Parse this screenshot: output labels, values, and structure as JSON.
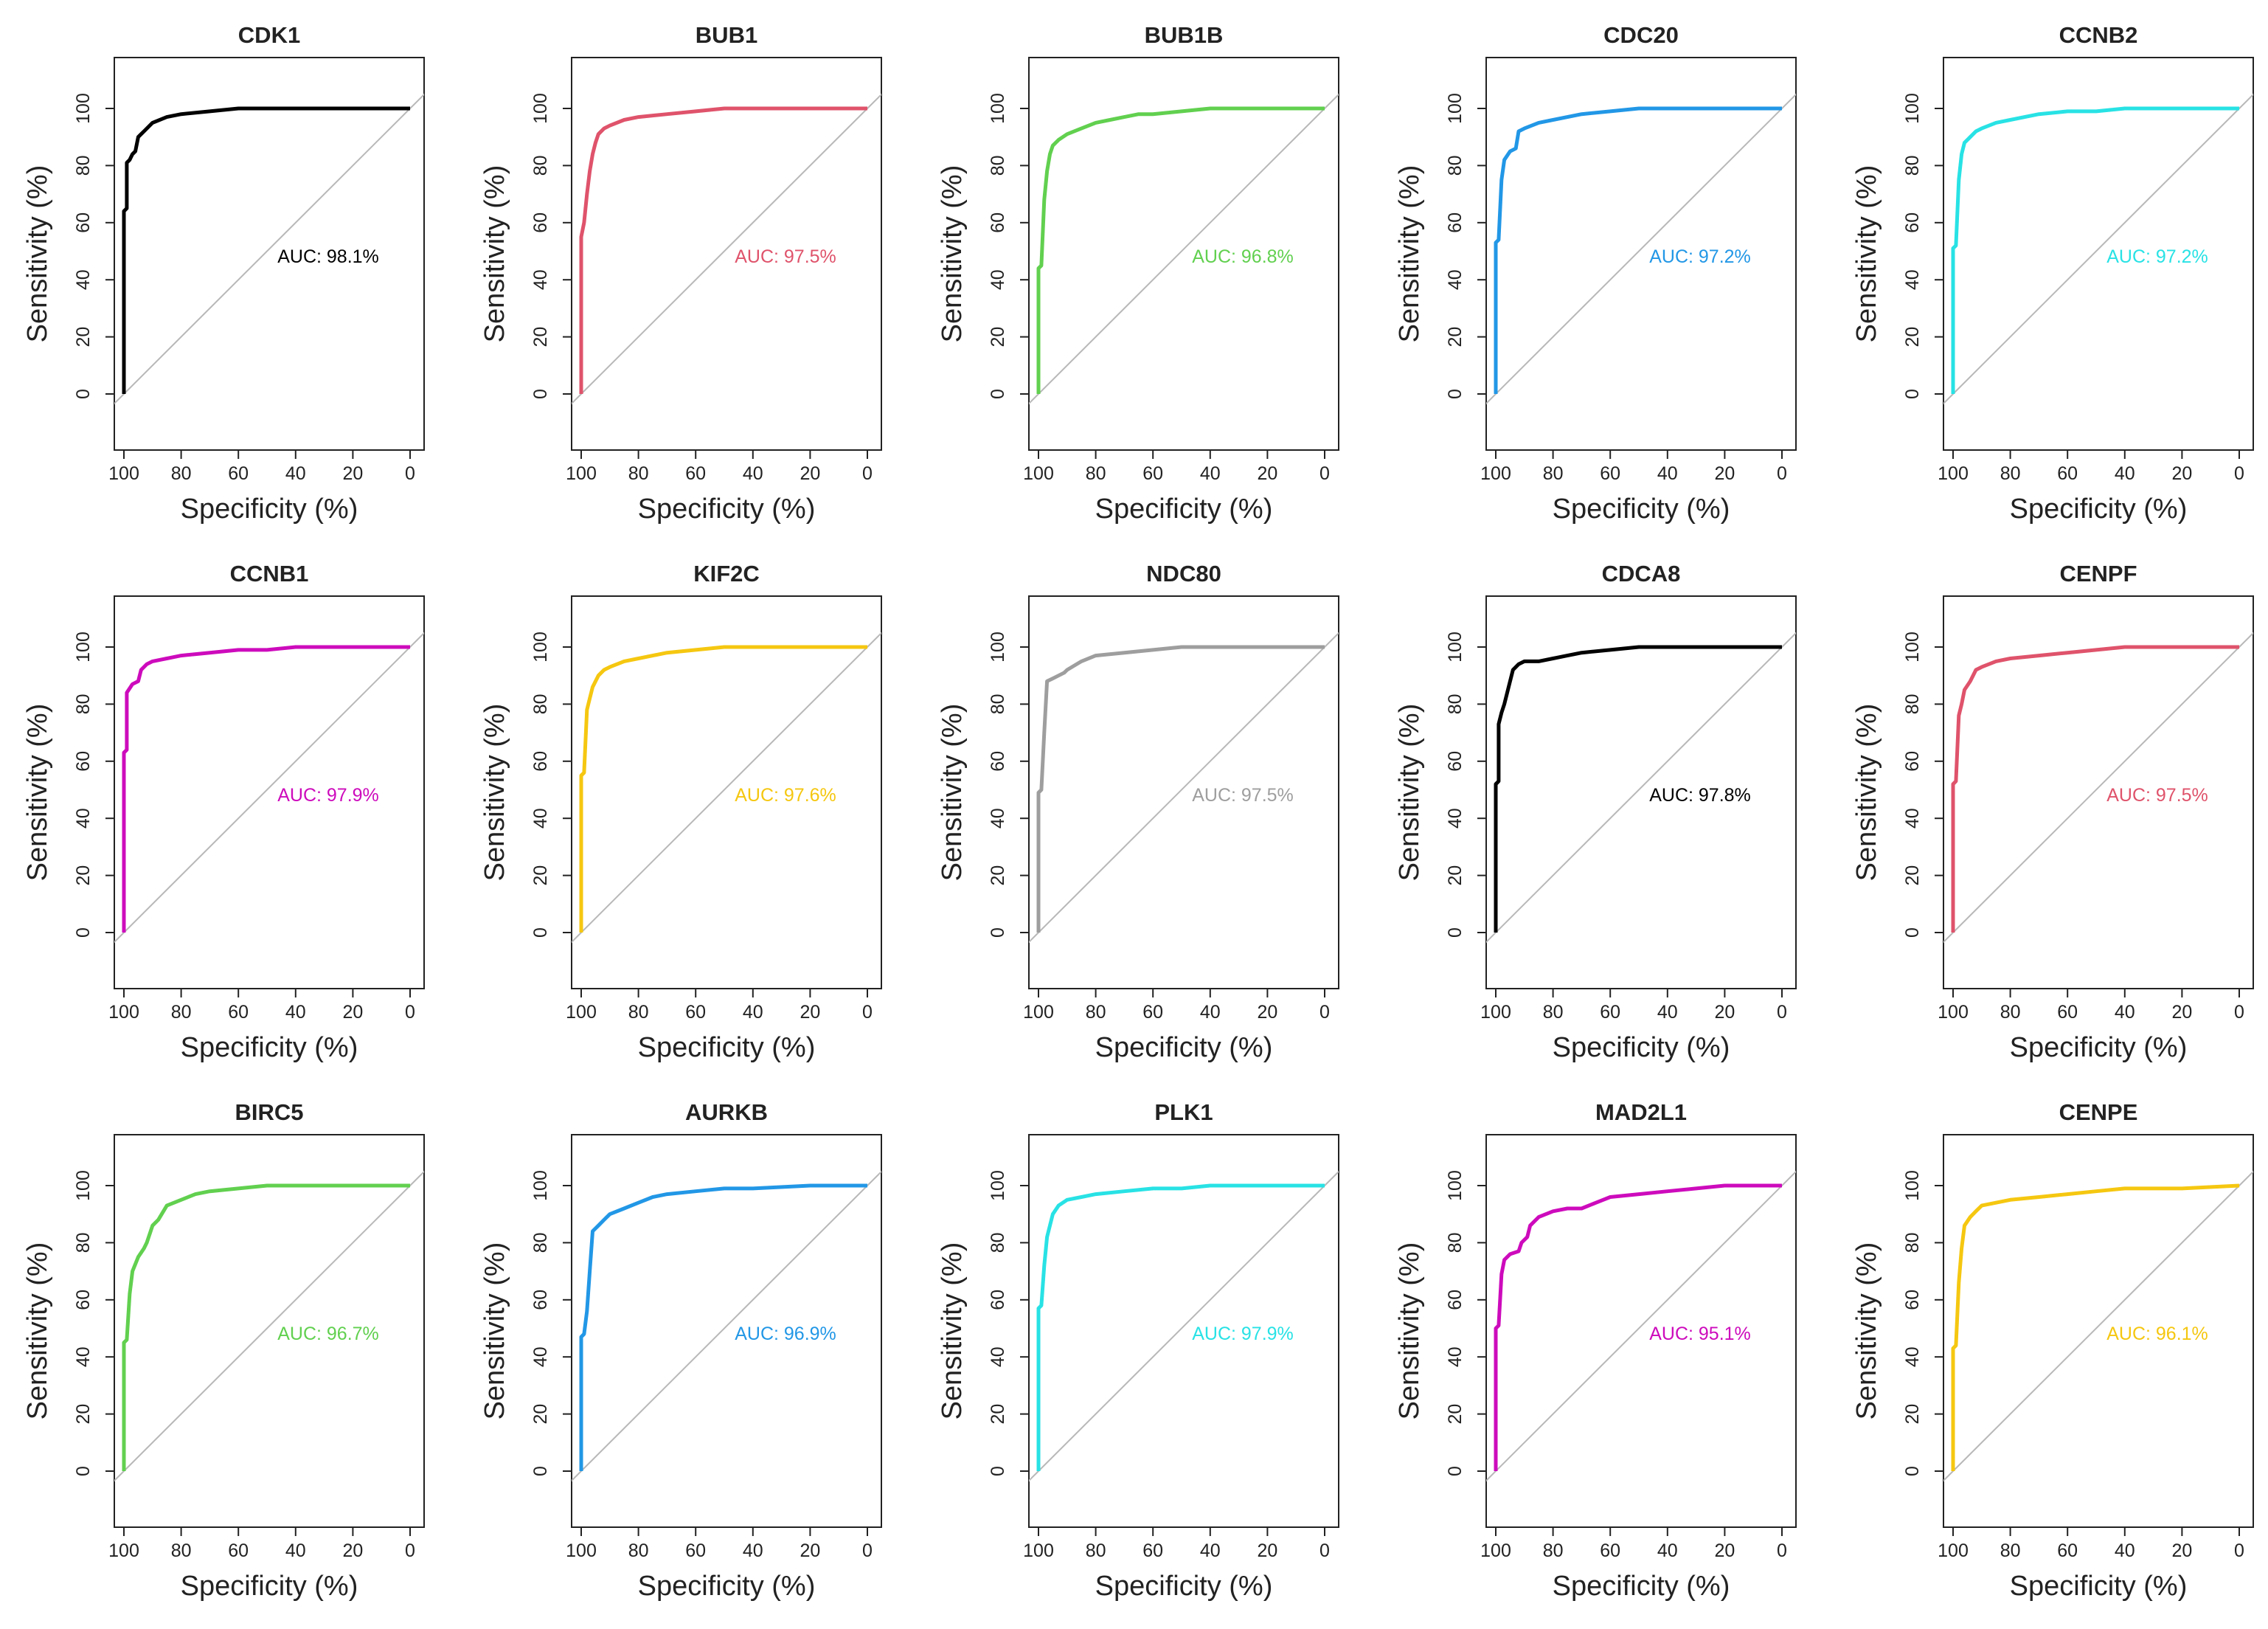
{
  "chart_data": [
    {
      "type": "line",
      "title": "CDK1",
      "xlabel": "Specificity (%)",
      "ylabel": "Sensitivity (%)",
      "xlim": [
        100,
        0
      ],
      "ylim": [
        0,
        100
      ],
      "xticks": [
        "100",
        "80",
        "60",
        "40",
        "20",
        "0"
      ],
      "yticks": [
        "0",
        "20",
        "40",
        "60",
        "80",
        "100"
      ],
      "color": "#000000",
      "auc_text": "AUC: 98.1%",
      "series": [
        {
          "x": [
            100,
            100,
            99,
            99,
            98,
            97,
            96,
            95,
            94,
            93,
            90,
            85,
            80,
            70,
            60,
            50,
            40,
            20,
            0
          ],
          "y": [
            0,
            64,
            65,
            81,
            82,
            84,
            85,
            90,
            91,
            92,
            95,
            97,
            98,
            99,
            100,
            100,
            100,
            100,
            100
          ]
        }
      ]
    },
    {
      "type": "line",
      "title": "BUB1",
      "xlabel": "Specificity (%)",
      "ylabel": "Sensitivity (%)",
      "xlim": [
        100,
        0
      ],
      "ylim": [
        0,
        100
      ],
      "xticks": [
        "100",
        "80",
        "60",
        "40",
        "20",
        "0"
      ],
      "yticks": [
        "0",
        "20",
        "40",
        "60",
        "80",
        "100"
      ],
      "color": "#DF536B",
      "auc_text": "AUC: 97.5%",
      "series": [
        {
          "x": [
            100,
            100,
            99,
            98,
            97,
            96,
            95,
            94,
            92,
            90,
            85,
            80,
            70,
            60,
            50,
            40,
            20,
            0
          ],
          "y": [
            0,
            55,
            60,
            70,
            78,
            84,
            88,
            91,
            93,
            94,
            96,
            97,
            98,
            99,
            100,
            100,
            100,
            100
          ]
        }
      ]
    },
    {
      "type": "line",
      "title": "BUB1B",
      "xlabel": "Specificity (%)",
      "ylabel": "Sensitivity (%)",
      "xlim": [
        100,
        0
      ],
      "ylim": [
        0,
        100
      ],
      "xticks": [
        "100",
        "80",
        "60",
        "40",
        "20",
        "0"
      ],
      "yticks": [
        "0",
        "20",
        "40",
        "60",
        "80",
        "100"
      ],
      "color": "#61D04F",
      "auc_text": "AUC: 96.8%",
      "series": [
        {
          "x": [
            100,
            100,
            99,
            98,
            97,
            96,
            95,
            93,
            90,
            85,
            80,
            75,
            70,
            65,
            60,
            50,
            40,
            20,
            0
          ],
          "y": [
            0,
            44,
            45,
            68,
            78,
            84,
            87,
            89,
            91,
            93,
            95,
            96,
            97,
            98,
            98,
            99,
            100,
            100,
            100
          ]
        }
      ]
    },
    {
      "type": "line",
      "title": "CDC20",
      "xlabel": "Specificity (%)",
      "ylabel": "Sensitivity (%)",
      "xlim": [
        100,
        0
      ],
      "ylim": [
        0,
        100
      ],
      "xticks": [
        "100",
        "80",
        "60",
        "40",
        "20",
        "0"
      ],
      "yticks": [
        "0",
        "20",
        "40",
        "60",
        "80",
        "100"
      ],
      "color": "#2297E6",
      "auc_text": "AUC: 97.2%",
      "series": [
        {
          "x": [
            100,
            100,
            99,
            98,
            97,
            95,
            93,
            92,
            90,
            85,
            80,
            70,
            60,
            50,
            40,
            20,
            0
          ],
          "y": [
            0,
            53,
            54,
            75,
            82,
            85,
            86,
            92,
            93,
            95,
            96,
            98,
            99,
            100,
            100,
            100,
            100
          ]
        }
      ]
    },
    {
      "type": "line",
      "title": "CCNB2",
      "xlabel": "Specificity (%)",
      "ylabel": "Sensitivity (%)",
      "xlim": [
        100,
        0
      ],
      "ylim": [
        0,
        100
      ],
      "xticks": [
        "100",
        "80",
        "60",
        "40",
        "20",
        "0"
      ],
      "yticks": [
        "0",
        "20",
        "40",
        "60",
        "80",
        "100"
      ],
      "color": "#28E2E5",
      "auc_text": "AUC: 97.2%",
      "series": [
        {
          "x": [
            100,
            100,
            99,
            98,
            97,
            96,
            94,
            92,
            90,
            85,
            80,
            70,
            60,
            50,
            40,
            20,
            0
          ],
          "y": [
            0,
            51,
            52,
            75,
            84,
            88,
            90,
            92,
            93,
            95,
            96,
            98,
            99,
            99,
            100,
            100,
            100
          ]
        }
      ]
    },
    {
      "type": "line",
      "title": "CCNB1",
      "xlabel": "Specificity (%)",
      "ylabel": "Sensitivity (%)",
      "xlim": [
        100,
        0
      ],
      "ylim": [
        0,
        100
      ],
      "xticks": [
        "100",
        "80",
        "60",
        "40",
        "20",
        "0"
      ],
      "yticks": [
        "0",
        "20",
        "40",
        "60",
        "80",
        "100"
      ],
      "color": "#CD0BBC",
      "auc_text": "AUC: 97.9%",
      "series": [
        {
          "x": [
            100,
            100,
            99,
            99,
            97,
            95,
            94,
            92,
            90,
            85,
            80,
            70,
            60,
            50,
            40,
            20,
            0
          ],
          "y": [
            0,
            63,
            64,
            84,
            87,
            88,
            92,
            94,
            95,
            96,
            97,
            98,
            99,
            99,
            100,
            100,
            100
          ]
        }
      ]
    },
    {
      "type": "line",
      "title": "KIF2C",
      "xlabel": "Specificity (%)",
      "ylabel": "Sensitivity (%)",
      "xlim": [
        100,
        0
      ],
      "ylim": [
        0,
        100
      ],
      "xticks": [
        "100",
        "80",
        "60",
        "40",
        "20",
        "0"
      ],
      "yticks": [
        "0",
        "20",
        "40",
        "60",
        "80",
        "100"
      ],
      "color": "#F5C710",
      "auc_text": "AUC: 97.6%",
      "series": [
        {
          "x": [
            100,
            100,
            99,
            98,
            97,
            96,
            94,
            92,
            90,
            85,
            80,
            70,
            60,
            50,
            40,
            20,
            0
          ],
          "y": [
            0,
            55,
            56,
            78,
            82,
            86,
            90,
            92,
            93,
            95,
            96,
            98,
            99,
            100,
            100,
            100,
            100
          ]
        }
      ]
    },
    {
      "type": "line",
      "title": "NDC80",
      "xlabel": "Specificity (%)",
      "ylabel": "Sensitivity (%)",
      "xlim": [
        100,
        0
      ],
      "ylim": [
        0,
        100
      ],
      "xticks": [
        "100",
        "80",
        "60",
        "40",
        "20",
        "0"
      ],
      "yticks": [
        "0",
        "20",
        "40",
        "60",
        "80",
        "100"
      ],
      "color": "#9E9E9E",
      "auc_text": "AUC: 97.5%",
      "series": [
        {
          "x": [
            100,
            100,
            99,
            98,
            97,
            95,
            93,
            91,
            90,
            85,
            80,
            70,
            60,
            50,
            40,
            20,
            0
          ],
          "y": [
            0,
            49,
            50,
            70,
            88,
            89,
            90,
            91,
            92,
            95,
            97,
            98,
            99,
            100,
            100,
            100,
            100
          ]
        }
      ]
    },
    {
      "type": "line",
      "title": "CDCA8",
      "xlabel": "Specificity (%)",
      "ylabel": "Sensitivity (%)",
      "xlim": [
        100,
        0
      ],
      "ylim": [
        0,
        100
      ],
      "xticks": [
        "100",
        "80",
        "60",
        "40",
        "20",
        "0"
      ],
      "yticks": [
        "0",
        "20",
        "40",
        "60",
        "80",
        "100"
      ],
      "color": "#000000",
      "auc_text": "AUC: 97.8%",
      "series": [
        {
          "x": [
            100,
            100,
            99,
            99,
            98,
            97,
            96,
            95,
            94,
            92,
            90,
            85,
            80,
            75,
            70,
            60,
            50,
            40,
            20,
            0
          ],
          "y": [
            0,
            52,
            53,
            73,
            77,
            80,
            84,
            88,
            92,
            94,
            95,
            95,
            96,
            97,
            98,
            99,
            100,
            100,
            100,
            100
          ]
        }
      ]
    },
    {
      "type": "line",
      "title": "CENPF",
      "xlabel": "Specificity (%)",
      "ylabel": "Sensitivity (%)",
      "xlim": [
        100,
        0
      ],
      "ylim": [
        0,
        100
      ],
      "xticks": [
        "100",
        "80",
        "60",
        "40",
        "20",
        "0"
      ],
      "yticks": [
        "0",
        "20",
        "40",
        "60",
        "80",
        "100"
      ],
      "color": "#DF536B",
      "auc_text": "AUC: 97.5%",
      "series": [
        {
          "x": [
            100,
            100,
            99,
            98,
            97,
            96,
            94,
            92,
            90,
            85,
            80,
            70,
            60,
            50,
            40,
            20,
            0
          ],
          "y": [
            0,
            52,
            53,
            76,
            80,
            85,
            88,
            92,
            93,
            95,
            96,
            97,
            98,
            99,
            100,
            100,
            100
          ]
        }
      ]
    },
    {
      "type": "line",
      "title": "BIRC5",
      "xlabel": "Specificity (%)",
      "ylabel": "Sensitivity (%)",
      "xlim": [
        100,
        0
      ],
      "ylim": [
        0,
        100
      ],
      "xticks": [
        "100",
        "80",
        "60",
        "40",
        "20",
        "0"
      ],
      "yticks": [
        "0",
        "20",
        "40",
        "60",
        "80",
        "100"
      ],
      "color": "#61D04F",
      "auc_text": "AUC: 96.7%",
      "series": [
        {
          "x": [
            100,
            100,
            99,
            98,
            97,
            95,
            93,
            92,
            90,
            88,
            85,
            80,
            75,
            70,
            60,
            50,
            40,
            20,
            0
          ],
          "y": [
            0,
            45,
            46,
            62,
            70,
            75,
            78,
            80,
            86,
            88,
            93,
            95,
            97,
            98,
            99,
            100,
            100,
            100,
            100
          ]
        }
      ]
    },
    {
      "type": "line",
      "title": "AURKB",
      "xlabel": "Specificity (%)",
      "ylabel": "Sensitivity (%)",
      "xlim": [
        100,
        0
      ],
      "ylim": [
        0,
        100
      ],
      "xticks": [
        "100",
        "80",
        "60",
        "40",
        "20",
        "0"
      ],
      "yticks": [
        "0",
        "20",
        "40",
        "60",
        "80",
        "100"
      ],
      "color": "#2297E6",
      "auc_text": "AUC: 96.9%",
      "series": [
        {
          "x": [
            100,
            100,
            99,
            98,
            97,
            96,
            94,
            92,
            90,
            85,
            80,
            75,
            70,
            60,
            50,
            40,
            20,
            0
          ],
          "y": [
            0,
            47,
            48,
            56,
            70,
            84,
            86,
            88,
            90,
            92,
            94,
            96,
            97,
            98,
            99,
            99,
            100,
            100
          ]
        }
      ]
    },
    {
      "type": "line",
      "title": "PLK1",
      "xlabel": "Specificity (%)",
      "ylabel": "Sensitivity (%)",
      "xlim": [
        100,
        0
      ],
      "ylim": [
        0,
        100
      ],
      "xticks": [
        "100",
        "80",
        "60",
        "40",
        "20",
        "0"
      ],
      "yticks": [
        "0",
        "20",
        "40",
        "60",
        "80",
        "100"
      ],
      "color": "#28E2E5",
      "auc_text": "AUC: 97.9%",
      "series": [
        {
          "x": [
            100,
            100,
            99,
            98,
            97,
            96,
            95,
            93,
            90,
            85,
            80,
            70,
            60,
            50,
            40,
            20,
            0
          ],
          "y": [
            0,
            57,
            58,
            72,
            82,
            86,
            90,
            93,
            95,
            96,
            97,
            98,
            99,
            99,
            100,
            100,
            100
          ]
        }
      ]
    },
    {
      "type": "line",
      "title": "MAD2L1",
      "xlabel": "Specificity (%)",
      "ylabel": "Sensitivity (%)",
      "xlim": [
        100,
        0
      ],
      "ylim": [
        0,
        100
      ],
      "xticks": [
        "100",
        "80",
        "60",
        "40",
        "20",
        "0"
      ],
      "yticks": [
        "0",
        "20",
        "40",
        "60",
        "80",
        "100"
      ],
      "color": "#CD0BBC",
      "auc_text": "AUC: 95.1%",
      "series": [
        {
          "x": [
            100,
            100,
            99,
            98,
            97,
            95,
            92,
            91,
            89,
            88,
            85,
            80,
            75,
            70,
            65,
            60,
            50,
            40,
            30,
            20,
            0
          ],
          "y": [
            0,
            50,
            51,
            69,
            74,
            76,
            77,
            80,
            82,
            86,
            89,
            91,
            92,
            92,
            94,
            96,
            97,
            98,
            99,
            100,
            100
          ]
        }
      ]
    },
    {
      "type": "line",
      "title": "CENPE",
      "xlabel": "Specificity (%)",
      "ylabel": "Sensitivity (%)",
      "xlim": [
        100,
        0
      ],
      "ylim": [
        0,
        100
      ],
      "xticks": [
        "100",
        "80",
        "60",
        "40",
        "20",
        "0"
      ],
      "yticks": [
        "0",
        "20",
        "40",
        "60",
        "80",
        "100"
      ],
      "color": "#F5C710",
      "auc_text": "AUC: 96.1%",
      "series": [
        {
          "x": [
            100,
            100,
            99,
            98,
            97,
            96,
            94,
            92,
            90,
            85,
            80,
            70,
            60,
            50,
            40,
            20,
            0
          ],
          "y": [
            0,
            43,
            44,
            66,
            78,
            86,
            89,
            91,
            93,
            94,
            95,
            96,
            97,
            98,
            99,
            99,
            100
          ]
        }
      ]
    }
  ]
}
